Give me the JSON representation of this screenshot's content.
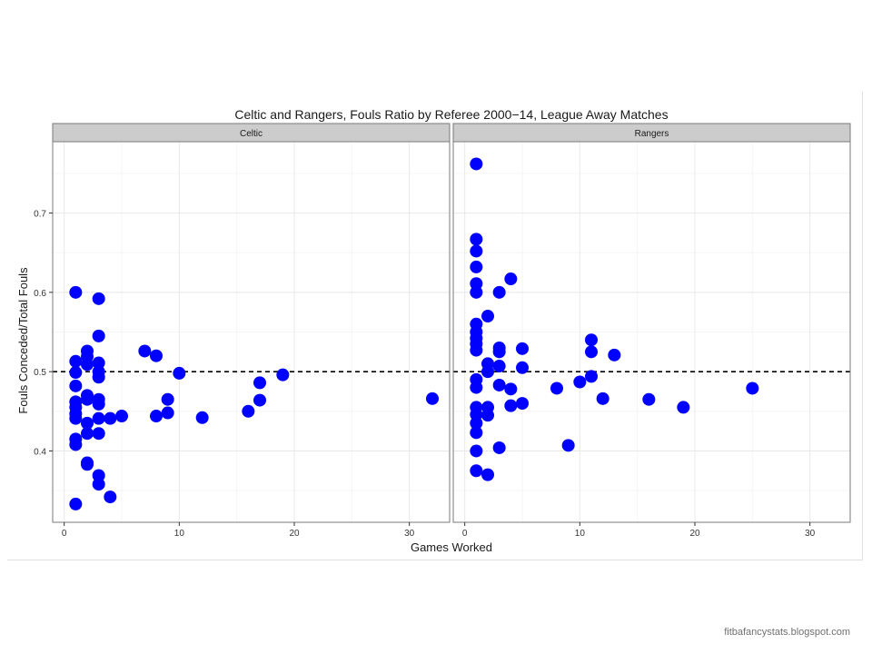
{
  "chart_data": {
    "type": "scatter",
    "title": "Celtic and Rangers, Fouls Ratio by Referee 2000−14, League Away Matches",
    "xlabel": "Games Worked",
    "ylabel": "Fouls Conceded/Total Fouls",
    "xlim": [
      -1,
      33.5
    ],
    "ylim": [
      0.31,
      0.79
    ],
    "xticks": [
      0,
      10,
      20,
      30
    ],
    "yticks": [
      0.4,
      0.5,
      0.6,
      0.7
    ],
    "xtick_labels": [
      "0",
      "10",
      "20",
      "30"
    ],
    "ytick_labels": [
      "0.4",
      "0.5",
      "0.6",
      "0.7"
    ],
    "reference_line": 0.5,
    "grid": true,
    "marker_color": "#0000ff",
    "panels": [
      {
        "name": "Celtic",
        "points": [
          [
            1,
            0.6
          ],
          [
            1,
            0.513
          ],
          [
            1,
            0.499
          ],
          [
            1,
            0.482
          ],
          [
            1,
            0.462
          ],
          [
            1,
            0.455
          ],
          [
            1,
            0.447
          ],
          [
            1,
            0.441
          ],
          [
            1,
            0.415
          ],
          [
            1,
            0.408
          ],
          [
            1,
            0.333
          ],
          [
            2,
            0.526
          ],
          [
            2,
            0.519
          ],
          [
            2,
            0.509
          ],
          [
            2,
            0.47
          ],
          [
            2,
            0.465
          ],
          [
            2,
            0.435
          ],
          [
            2,
            0.422
          ],
          [
            2,
            0.385
          ],
          [
            2,
            0.383
          ],
          [
            3,
            0.592
          ],
          [
            3,
            0.545
          ],
          [
            3,
            0.511
          ],
          [
            3,
            0.5
          ],
          [
            3,
            0.493
          ],
          [
            3,
            0.465
          ],
          [
            3,
            0.459
          ],
          [
            3,
            0.441
          ],
          [
            3,
            0.422
          ],
          [
            3,
            0.369
          ],
          [
            3,
            0.358
          ],
          [
            4,
            0.441
          ],
          [
            4,
            0.342
          ],
          [
            5,
            0.444
          ],
          [
            7,
            0.526
          ],
          [
            8,
            0.52
          ],
          [
            8,
            0.444
          ],
          [
            9,
            0.465
          ],
          [
            9,
            0.448
          ],
          [
            10,
            0.498
          ],
          [
            12,
            0.442
          ],
          [
            16,
            0.45
          ],
          [
            17,
            0.486
          ],
          [
            17,
            0.464
          ],
          [
            19,
            0.496
          ],
          [
            32,
            0.466
          ]
        ]
      },
      {
        "name": "Rangers",
        "points": [
          [
            1,
            0.762
          ],
          [
            1,
            0.667
          ],
          [
            1,
            0.652
          ],
          [
            1,
            0.632
          ],
          [
            1,
            0.611
          ],
          [
            1,
            0.6
          ],
          [
            1,
            0.56
          ],
          [
            1,
            0.55
          ],
          [
            1,
            0.542
          ],
          [
            1,
            0.535
          ],
          [
            1,
            0.527
          ],
          [
            1,
            0.49
          ],
          [
            1,
            0.48
          ],
          [
            1,
            0.455
          ],
          [
            1,
            0.446
          ],
          [
            1,
            0.435
          ],
          [
            1,
            0.423
          ],
          [
            1,
            0.4
          ],
          [
            1,
            0.375
          ],
          [
            2,
            0.57
          ],
          [
            2,
            0.51
          ],
          [
            2,
            0.5
          ],
          [
            2,
            0.455
          ],
          [
            2,
            0.445
          ],
          [
            2,
            0.37
          ],
          [
            3,
            0.6
          ],
          [
            3,
            0.53
          ],
          [
            3,
            0.525
          ],
          [
            3,
            0.507
          ],
          [
            3,
            0.483
          ],
          [
            3,
            0.404
          ],
          [
            4,
            0.617
          ],
          [
            4,
            0.478
          ],
          [
            4,
            0.457
          ],
          [
            5,
            0.529
          ],
          [
            5,
            0.505
          ],
          [
            5,
            0.46
          ],
          [
            8,
            0.479
          ],
          [
            9,
            0.407
          ],
          [
            10,
            0.487
          ],
          [
            11,
            0.54
          ],
          [
            11,
            0.525
          ],
          [
            11,
            0.494
          ],
          [
            12,
            0.466
          ],
          [
            13,
            0.521
          ],
          [
            16,
            0.465
          ],
          [
            19,
            0.455
          ],
          [
            25,
            0.479
          ]
        ]
      }
    ]
  },
  "footer": {
    "credit": "fitbafancystats.blogspot.com"
  }
}
